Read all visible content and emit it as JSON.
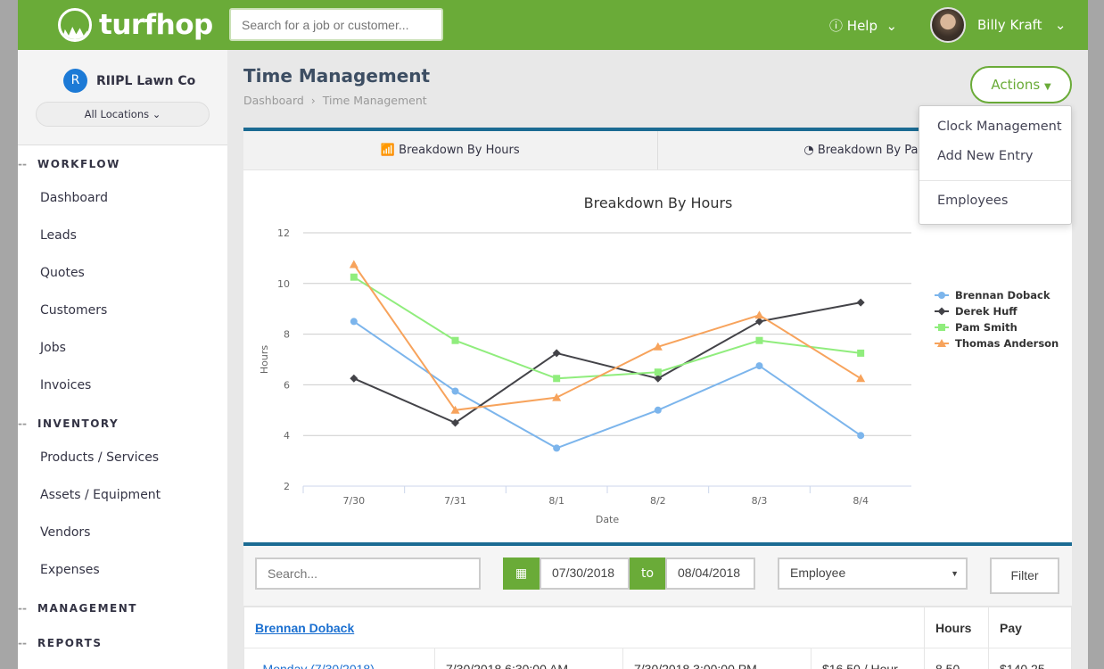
{
  "header": {
    "logo": "turfhop",
    "search_placeholder": "Search for a job or customer...",
    "help": "Help",
    "user": "Billy Kraft"
  },
  "sidebar": {
    "org_initial": "R",
    "org": "RIIPL Lawn Co",
    "location": "All Locations",
    "sections": [
      {
        "title": "WORKFLOW",
        "items": [
          "Dashboard",
          "Leads",
          "Quotes",
          "Customers",
          "Jobs",
          "Invoices"
        ]
      },
      {
        "title": "INVENTORY",
        "items": [
          "Products / Services",
          "Assets / Equipment",
          "Vendors",
          "Expenses"
        ]
      },
      {
        "title": "MANAGEMENT",
        "items": []
      },
      {
        "title": "REPORTS",
        "items": []
      }
    ]
  },
  "page": {
    "title": "Time Management",
    "breadcrumb": [
      "Dashboard",
      "Time Management"
    ],
    "actions": "Actions",
    "menu": [
      "Clock Management",
      "Add New Entry",
      "Employees"
    ],
    "tabs": [
      "Breakdown By Hours",
      "Breakdown By Pay"
    ]
  },
  "chart_data": {
    "type": "line",
    "title": "Breakdown By Hours",
    "xlabel": "Date",
    "ylabel": "Hours",
    "categories": [
      "7/30",
      "7/31",
      "8/1",
      "8/2",
      "8/3",
      "8/4"
    ],
    "ylim": [
      2,
      12
    ],
    "yticks": [
      2,
      4,
      6,
      8,
      10,
      12
    ],
    "grid": true,
    "legend": "right",
    "series": [
      {
        "name": "Brennan Doback",
        "color": "#7cb5ec",
        "marker": "circle",
        "values": [
          8.5,
          5.75,
          3.5,
          5,
          6.75,
          4
        ]
      },
      {
        "name": "Derek Huff",
        "color": "#434348",
        "marker": "diamond",
        "values": [
          6.25,
          4.5,
          7.25,
          6.25,
          8.5,
          9.25
        ]
      },
      {
        "name": "Pam Smith",
        "color": "#90ed7d",
        "marker": "square",
        "values": [
          10.25,
          7.75,
          6.25,
          6.5,
          7.75,
          7.25
        ]
      },
      {
        "name": "Thomas Anderson",
        "color": "#f7a35c",
        "marker": "triangle",
        "values": [
          10.75,
          5,
          5.5,
          7.5,
          8.75,
          6.25
        ]
      }
    ]
  },
  "filters": {
    "search_placeholder": "Search...",
    "from": "07/30/2018",
    "to_label": "to",
    "to": "08/04/2018",
    "employee": "Employee",
    "filter": "Filter"
  },
  "table": {
    "employee": "Brennan Doback",
    "headers": [
      "Hours",
      "Pay"
    ],
    "row": [
      "- Monday (7/30/2018)",
      "7/30/2018 6:30:00 AM",
      "7/30/2018 3:00:00 PM",
      "$16.50 / Hour",
      "8.50",
      "$140.25"
    ]
  }
}
